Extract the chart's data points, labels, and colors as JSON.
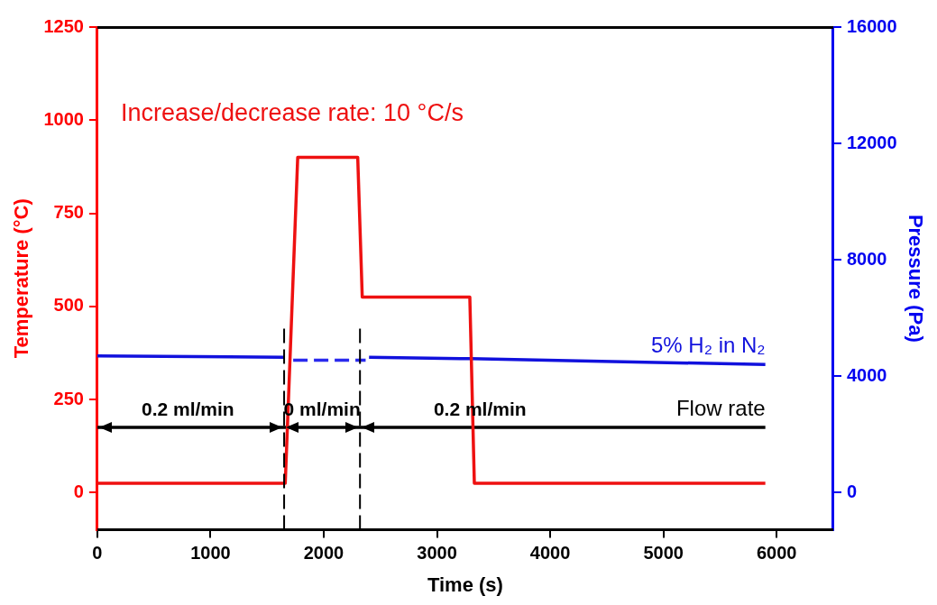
{
  "chart_data": {
    "type": "line",
    "xlabel": "Time (s)",
    "ylabel": "Temperature (°C)",
    "y2label": "Pressure (Pa)",
    "xlim": [
      0,
      6500
    ],
    "xticks": [
      0,
      1000,
      2000,
      3000,
      4000,
      5000,
      6000
    ],
    "ylim": [
      -100,
      1250
    ],
    "yticks": [
      0,
      250,
      500,
      750,
      1000,
      1250
    ],
    "y2lim": [
      -1280,
      16000
    ],
    "y2ticks": [
      0,
      4000,
      8000,
      12000,
      16000
    ],
    "series": [
      {
        "color": "#ee1111",
        "x": [
          0,
          1660,
          1770,
          2300,
          2340,
          3290,
          3330,
          5900
        ],
        "values": [
          25,
          25,
          900,
          900,
          525,
          525,
          25,
          25
        ]
      },
      {
        "name": "5% H₂ in N₂",
        "axis": "y2",
        "color": "#1111dd",
        "x": [
          0,
          1650,
          2000,
          2400,
          3300,
          5900
        ],
        "values": [
          4700,
          4650,
          null,
          4650,
          4600,
          4400
        ]
      },
      {
        "axis": "y2",
        "color": "#2a2aee",
        "line_style": "dashed",
        "x": [
          1730,
          2370
        ],
        "values": [
          4550,
          4550
        ]
      },
      {
        "name": "Flow rate",
        "color": "#000000",
        "x": [
          0,
          1650,
          2320,
          5900
        ],
        "values": [
          175,
          175,
          175,
          175
        ]
      }
    ],
    "ref_lines": [
      {
        "axis": "x",
        "value": 1650,
        "line_style": "dashed",
        "color": "#000000"
      },
      {
        "axis": "x",
        "value": 2320,
        "line_style": "dashed",
        "color": "#000000"
      }
    ],
    "annotations": [
      "Increase/decrease rate: 10 °C/s",
      {
        "text": "0.2 ml/min",
        "x": 800,
        "y": 175
      },
      {
        "text": "0 ml/min",
        "x": 1985,
        "y": 175
      },
      {
        "text": "0.2 ml/min",
        "x": 3380,
        "y": 175
      }
    ],
    "grid": false,
    "legend": false,
    "marker": "none",
    "line_style": "solid"
  }
}
